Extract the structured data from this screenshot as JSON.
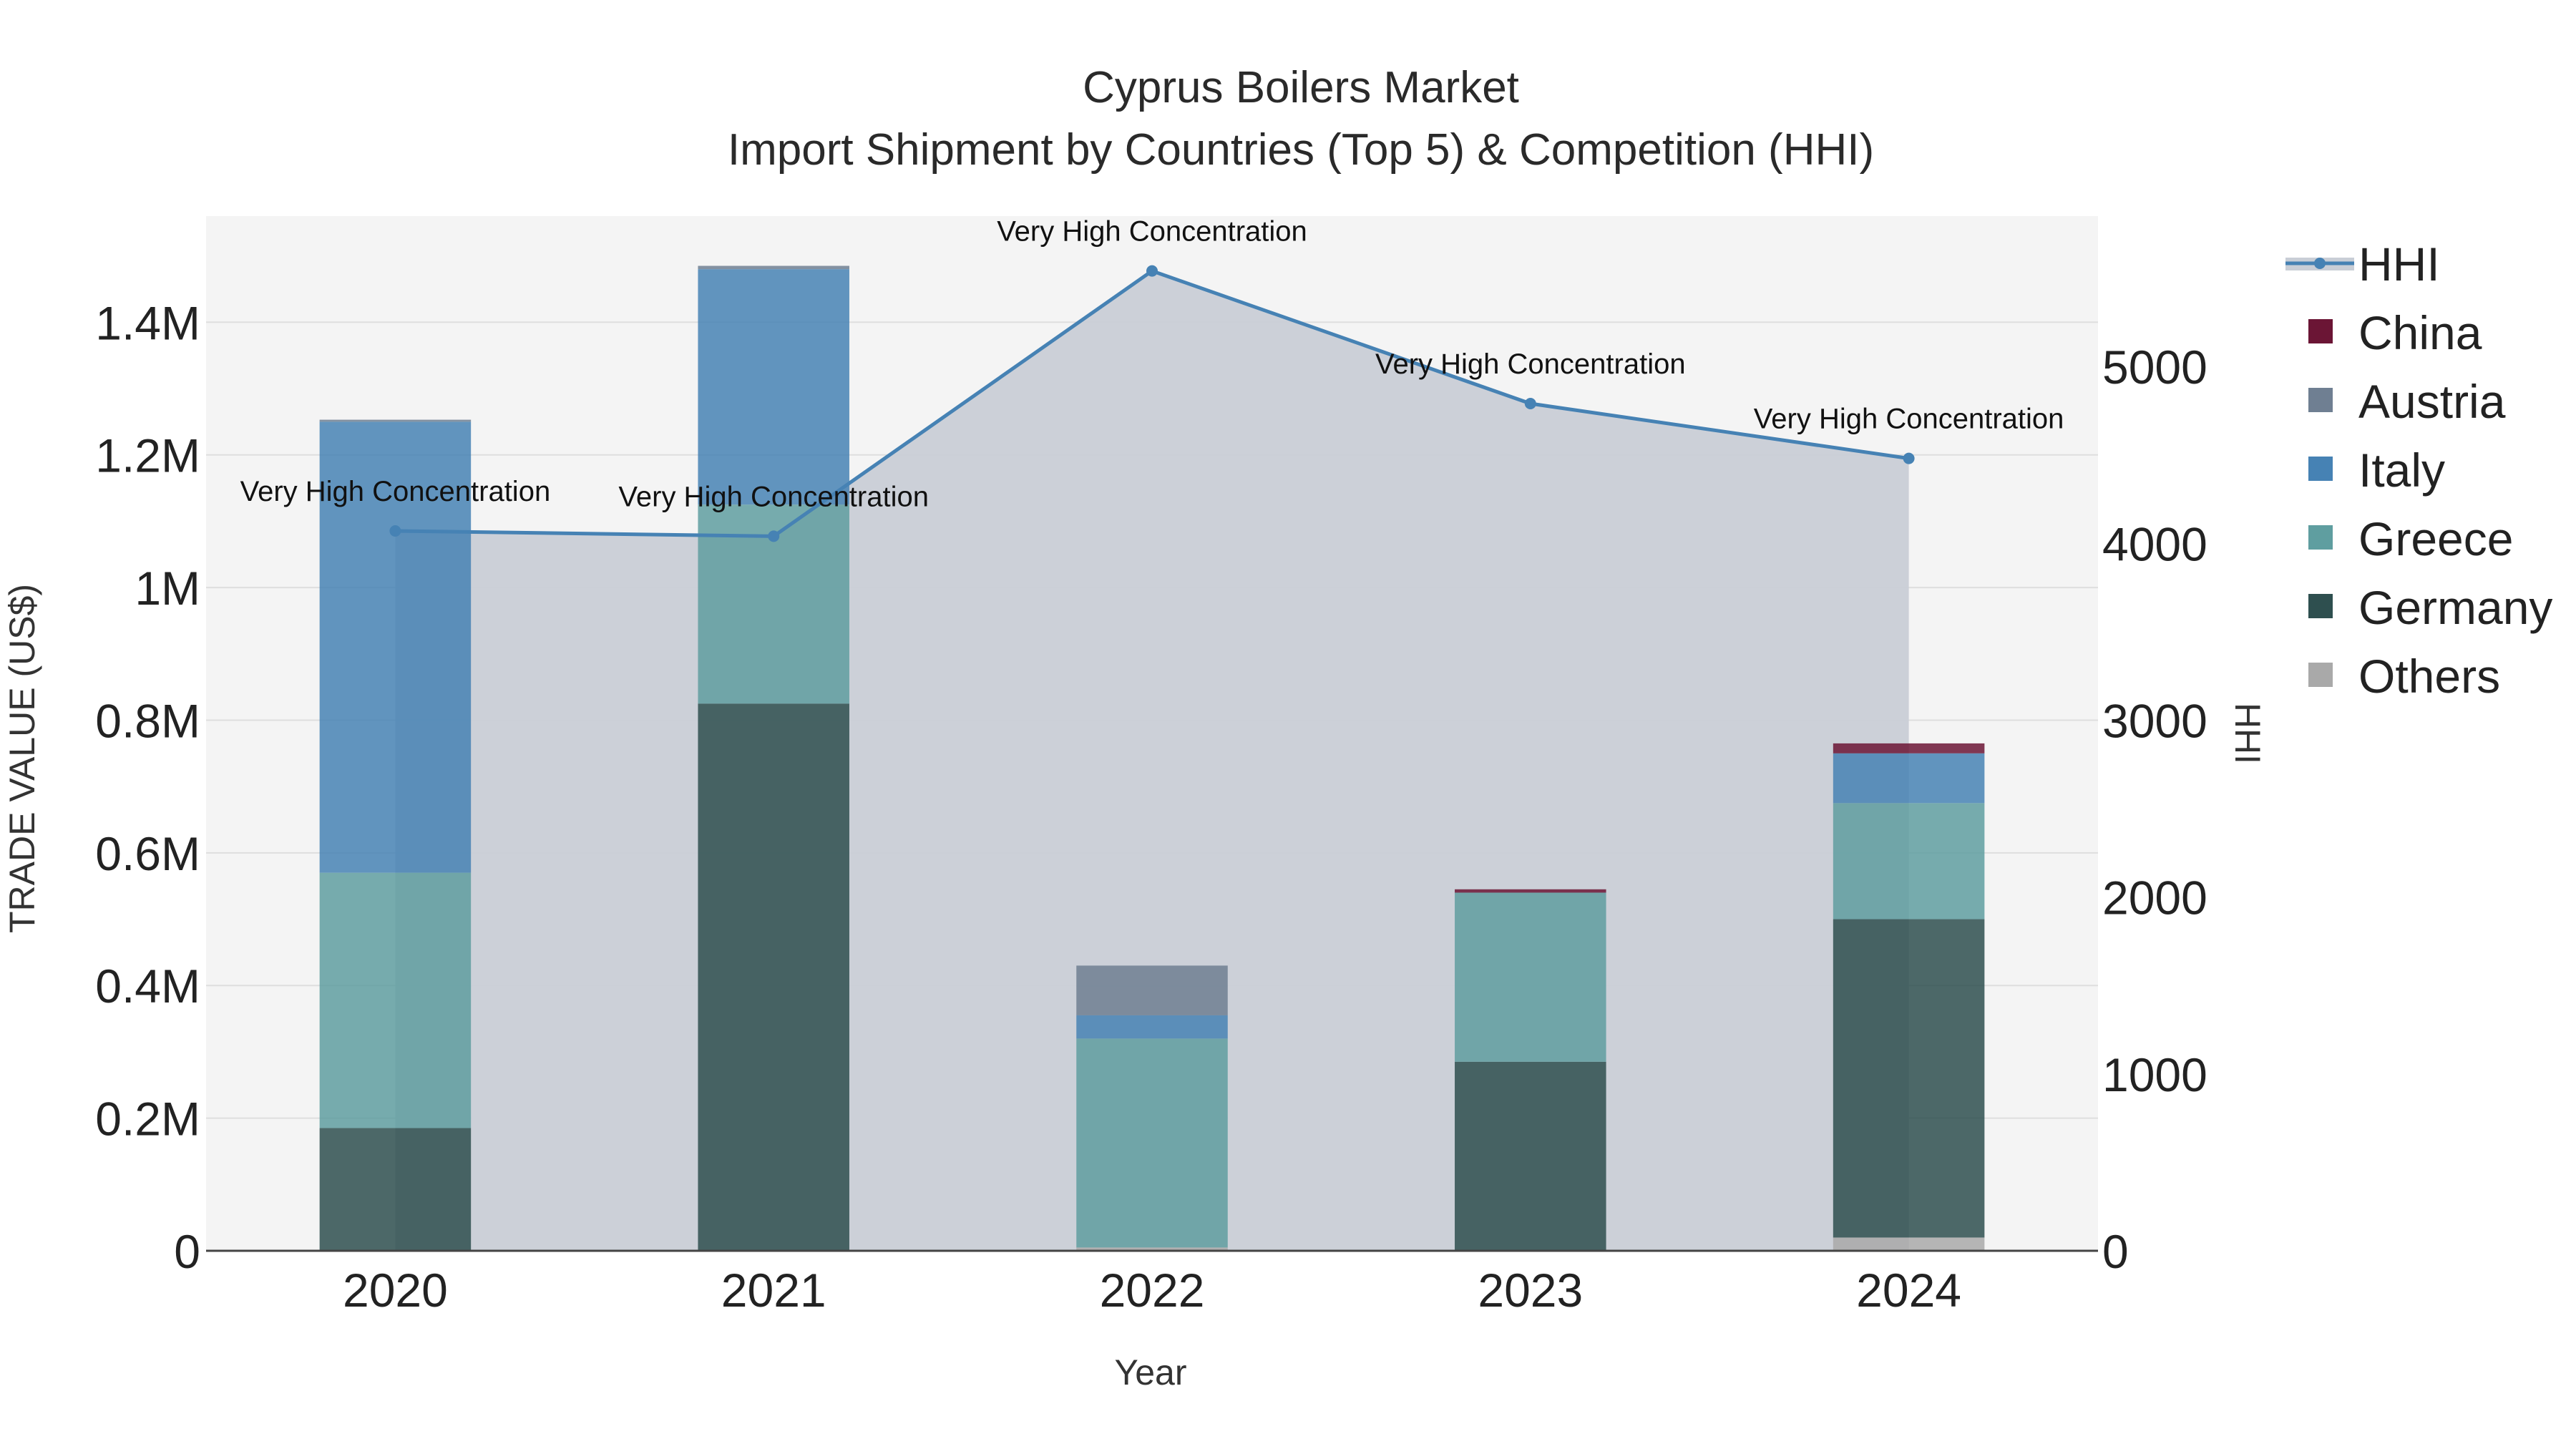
{
  "chart_data": {
    "type": "bar",
    "title": "Cyprus Boilers Market",
    "subtitle": "Import Shipment by Countries (Top 5) & Competition (HHI)",
    "xlabel": "Year",
    "ylabel": "TRADE VALUE (US$)",
    "y2label": "HHI",
    "categories": [
      "2020",
      "2021",
      "2022",
      "2023",
      "2024"
    ],
    "ylim": [
      0,
      1560000
    ],
    "y2lim": [
      0,
      5850
    ],
    "y_ticks": [
      {
        "value": 0,
        "label": "0"
      },
      {
        "value": 200000,
        "label": "0.2M"
      },
      {
        "value": 400000,
        "label": "0.4M"
      },
      {
        "value": 600000,
        "label": "0.6M"
      },
      {
        "value": 800000,
        "label": "0.8M"
      },
      {
        "value": 1000000,
        "label": "1M"
      },
      {
        "value": 1200000,
        "label": "1.2M"
      },
      {
        "value": 1400000,
        "label": "1.4M"
      }
    ],
    "y2_ticks": [
      {
        "value": 0,
        "label": "0"
      },
      {
        "value": 1000,
        "label": "1000"
      },
      {
        "value": 2000,
        "label": "2000"
      },
      {
        "value": 3000,
        "label": "3000"
      },
      {
        "value": 4000,
        "label": "4000"
      },
      {
        "value": 5000,
        "label": "5000"
      }
    ],
    "grid": true,
    "legend_position": "right",
    "stack_order": [
      "Others",
      "Germany",
      "Greece",
      "Italy",
      "Austria",
      "China"
    ],
    "series": [
      {
        "name": "China",
        "color": "#6b1535",
        "values": [
          0,
          0,
          0,
          5000,
          15000
        ]
      },
      {
        "name": "Austria",
        "color": "#6f7f92",
        "values": [
          3000,
          5000,
          75000,
          0,
          0
        ]
      },
      {
        "name": "Italy",
        "color": "#4682b4",
        "values": [
          680000,
          355000,
          35000,
          0,
          75000
        ]
      },
      {
        "name": "Greece",
        "color": "#5f9ea0",
        "values": [
          385000,
          300000,
          315000,
          255000,
          175000
        ]
      },
      {
        "name": "Germany",
        "color": "#2e4f4f",
        "values": [
          185000,
          825000,
          0,
          285000,
          480000
        ]
      },
      {
        "name": "Others",
        "color": "#a9a9a9",
        "values": [
          0,
          0,
          5000,
          0,
          20000
        ]
      }
    ],
    "hhi": {
      "name": "HHI",
      "color": "#4682b4",
      "fill": "#c9ced6",
      "values": [
        4070,
        4040,
        5540,
        4790,
        4480
      ],
      "annotations": [
        "Very High Concentration",
        "Very High Concentration",
        "Very High Concentration",
        "Very High Concentration",
        "Very High Concentration"
      ]
    }
  }
}
